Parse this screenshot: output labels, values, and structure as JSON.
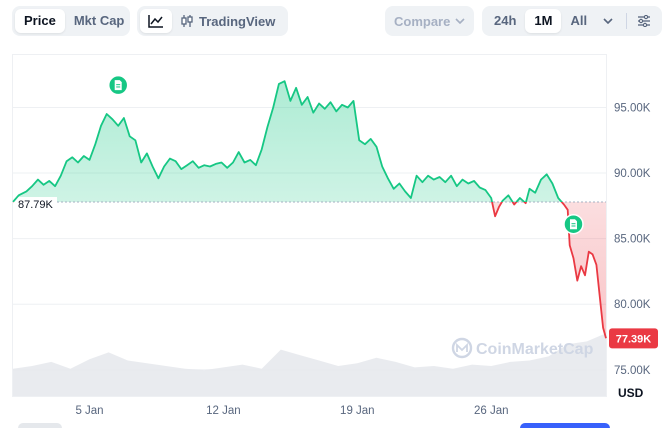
{
  "toolbar": {
    "price_label": "Price",
    "mktcap_label": "Mkt Cap",
    "tradingview_label": "TradingView",
    "compare_label": "Compare",
    "range_24h": "24h",
    "range_1m": "1M",
    "range_all": "All",
    "active_type": "Price",
    "active_range": "1M",
    "icons": {
      "line": "line-chart-icon",
      "candles": "candlestick-icon",
      "dropdown": "chevron-down-icon",
      "settings": "sliders-icon"
    }
  },
  "chart_data": {
    "type": "area",
    "currency_label": "USD",
    "watermark": "CoinMarketCap",
    "reference": {
      "value": 87.79,
      "label": "87.79K"
    },
    "current": {
      "value": 77.39,
      "label": "77.39K"
    },
    "ylim": [
      73,
      99
    ],
    "yticks": [
      {
        "value": 95,
        "label": "95.00K"
      },
      {
        "value": 90,
        "label": "90.00K"
      },
      {
        "value": 85,
        "label": "85.00K"
      },
      {
        "value": 80,
        "label": "80.00K"
      },
      {
        "value": 75,
        "label": "75.00K"
      }
    ],
    "xlim": [
      1,
      32
    ],
    "xticks": [
      {
        "value": 5,
        "label": "5 Jan"
      },
      {
        "value": 12,
        "label": "12 Jan"
      },
      {
        "value": 19,
        "label": "19 Jan"
      },
      {
        "value": 26,
        "label": "26 Jan"
      }
    ],
    "colors": {
      "up": "#16c784",
      "down": "#ea3943",
      "grid": "#eef0f3",
      "axis_text": "#58667e",
      "volume": "#e5e8ec"
    },
    "price_points": [
      [
        1.0,
        87.8
      ],
      [
        1.3,
        88.3
      ],
      [
        1.7,
        88.6
      ],
      [
        2.0,
        89.0
      ],
      [
        2.3,
        89.5
      ],
      [
        2.6,
        89.1
      ],
      [
        2.9,
        89.4
      ],
      [
        3.2,
        89.0
      ],
      [
        3.5,
        89.8
      ],
      [
        3.8,
        90.9
      ],
      [
        4.1,
        91.2
      ],
      [
        4.4,
        90.8
      ],
      [
        4.7,
        91.3
      ],
      [
        5.0,
        91.0
      ],
      [
        5.3,
        92.2
      ],
      [
        5.6,
        93.6
      ],
      [
        5.9,
        94.5
      ],
      [
        6.2,
        94.1
      ],
      [
        6.5,
        93.6
      ],
      [
        6.8,
        94.2
      ],
      [
        7.1,
        92.8
      ],
      [
        7.4,
        92.5
      ],
      [
        7.7,
        90.8
      ],
      [
        8.0,
        91.5
      ],
      [
        8.3,
        90.5
      ],
      [
        8.6,
        89.6
      ],
      [
        8.9,
        90.5
      ],
      [
        9.2,
        91.1
      ],
      [
        9.5,
        90.9
      ],
      [
        9.8,
        90.3
      ],
      [
        10.1,
        90.6
      ],
      [
        10.4,
        90.9
      ],
      [
        10.7,
        90.4
      ],
      [
        11.0,
        90.6
      ],
      [
        11.3,
        90.5
      ],
      [
        11.6,
        90.7
      ],
      [
        11.9,
        90.8
      ],
      [
        12.2,
        90.4
      ],
      [
        12.5,
        90.8
      ],
      [
        12.8,
        91.6
      ],
      [
        13.1,
        90.8
      ],
      [
        13.4,
        91.0
      ],
      [
        13.7,
        90.6
      ],
      [
        14.0,
        91.8
      ],
      [
        14.3,
        93.5
      ],
      [
        14.6,
        95.0
      ],
      [
        14.9,
        96.8
      ],
      [
        15.2,
        97.0
      ],
      [
        15.5,
        95.5
      ],
      [
        15.8,
        96.5
      ],
      [
        16.1,
        95.2
      ],
      [
        16.4,
        95.8
      ],
      [
        16.7,
        94.6
      ],
      [
        17.0,
        95.3
      ],
      [
        17.3,
        94.9
      ],
      [
        17.6,
        95.4
      ],
      [
        17.9,
        94.7
      ],
      [
        18.2,
        95.2
      ],
      [
        18.5,
        95.0
      ],
      [
        18.8,
        95.5
      ],
      [
        19.1,
        92.5
      ],
      [
        19.4,
        92.2
      ],
      [
        19.7,
        92.6
      ],
      [
        20.0,
        92.0
      ],
      [
        20.3,
        90.5
      ],
      [
        20.6,
        89.6
      ],
      [
        20.9,
        88.8
      ],
      [
        21.2,
        89.2
      ],
      [
        21.5,
        88.6
      ],
      [
        21.8,
        88.1
      ],
      [
        22.1,
        89.8
      ],
      [
        22.4,
        89.3
      ],
      [
        22.7,
        89.8
      ],
      [
        23.0,
        89.5
      ],
      [
        23.3,
        89.7
      ],
      [
        23.6,
        89.3
      ],
      [
        23.9,
        89.8
      ],
      [
        24.2,
        89.0
      ],
      [
        24.5,
        89.5
      ],
      [
        24.8,
        89.2
      ],
      [
        25.1,
        89.4
      ],
      [
        25.4,
        88.9
      ],
      [
        25.7,
        88.7
      ],
      [
        26.0,
        88.1
      ],
      [
        26.2,
        86.7
      ],
      [
        26.4,
        87.4
      ],
      [
        26.6,
        87.9
      ],
      [
        26.9,
        88.3
      ],
      [
        27.2,
        87.6
      ],
      [
        27.5,
        88.1
      ],
      [
        27.8,
        87.7
      ],
      [
        28.0,
        88.8
      ],
      [
        28.3,
        88.5
      ],
      [
        28.6,
        89.5
      ],
      [
        28.9,
        89.9
      ],
      [
        29.2,
        89.2
      ],
      [
        29.5,
        88.1
      ],
      [
        29.8,
        87.6
      ],
      [
        30.0,
        87.2
      ],
      [
        30.1,
        84.5
      ],
      [
        30.3,
        83.5
      ],
      [
        30.5,
        81.8
      ],
      [
        30.7,
        82.9
      ],
      [
        30.9,
        82.2
      ],
      [
        31.1,
        84.0
      ],
      [
        31.3,
        83.8
      ],
      [
        31.5,
        83.0
      ],
      [
        31.7,
        80.2
      ],
      [
        31.85,
        78.2
      ],
      [
        32.0,
        77.4
      ]
    ],
    "volume": [
      2.0,
      2.2,
      2.5,
      2.0,
      2.7,
      3.2,
      2.6,
      2.4,
      2.2,
      2.0,
      1.9,
      2.1,
      2.3,
      2.0,
      3.4,
      3.0,
      2.6,
      2.2,
      2.4,
      2.8,
      2.5,
      2.1,
      2.2,
      2.0,
      2.3,
      2.2,
      2.5,
      2.6,
      2.9,
      3.8,
      4.0,
      4.6
    ],
    "news_markers": [
      {
        "x": 6.5,
        "y": 96.7,
        "icon": "document-icon"
      },
      {
        "x": 30.3,
        "y": 86.1,
        "icon": "document-icon"
      }
    ]
  }
}
